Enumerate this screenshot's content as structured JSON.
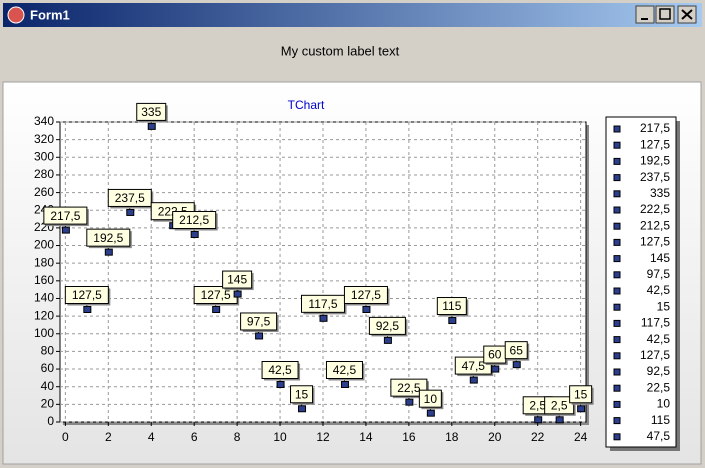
{
  "window": {
    "title": "Form1"
  },
  "label": "My custom label text",
  "chart_data": {
    "type": "scatter",
    "title": "TChart",
    "series": [
      {
        "color": "#2b3f8c",
        "x": [
          0,
          1,
          2,
          3,
          4,
          5,
          6,
          7,
          8,
          9,
          10,
          11,
          12,
          13,
          14,
          15,
          16,
          17,
          18,
          19,
          20,
          21,
          22,
          23,
          24
        ],
        "values": [
          217.5,
          127.5,
          192.5,
          237.5,
          335,
          222.5,
          212.5,
          127.5,
          145,
          97.5,
          42.5,
          15,
          117.5,
          42.5,
          127.5,
          92.5,
          22.5,
          10,
          115,
          47.5,
          60,
          65,
          2.5,
          2.5,
          15
        ],
        "value_labels": [
          "217,5",
          "127,5",
          "192,5",
          "237,5",
          "335",
          "222,5",
          "212,5",
          "127,5",
          "145",
          "97,5",
          "42,5",
          "15",
          "117,5",
          "42,5",
          "127,5",
          "92,5",
          "22,5",
          "10",
          "115",
          "47,5",
          "60",
          "65",
          "2,5",
          "2,5",
          "15"
        ]
      }
    ],
    "xlim": [
      -0.25,
      24.25
    ],
    "xticks": [
      0,
      2,
      4,
      6,
      8,
      10,
      12,
      14,
      16,
      18,
      20,
      22,
      24
    ],
    "ylim": [
      0,
      340
    ],
    "yticks": [
      0,
      20,
      40,
      60,
      80,
      100,
      120,
      140,
      160,
      180,
      200,
      220,
      240,
      260,
      280,
      300,
      320,
      340
    ],
    "grid": true,
    "legend": "right"
  }
}
